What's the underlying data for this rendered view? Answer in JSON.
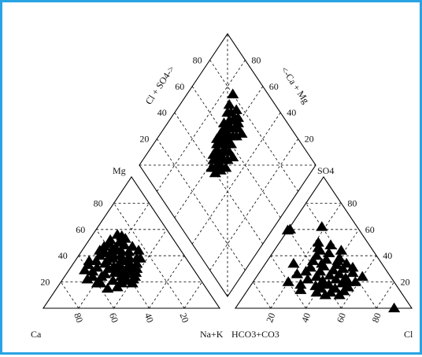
{
  "chart_data": [
    {
      "type": "scatter",
      "name": "cation-triangle",
      "labels": {
        "top": "Mg",
        "left": "Ca",
        "right": "Na+K"
      },
      "left_ticks": [
        "80",
        "60",
        "40",
        "20"
      ],
      "bottom_ticks": [
        "80",
        "60",
        "40",
        "20"
      ],
      "components": [
        "Ca",
        "Mg",
        "Na+K"
      ],
      "points": [
        [
          30,
          56,
          14
        ],
        [
          28,
          55,
          17
        ],
        [
          36,
          52,
          12
        ],
        [
          27,
          53,
          20
        ],
        [
          38,
          49,
          13
        ],
        [
          32,
          50,
          18
        ],
        [
          42,
          47,
          11
        ],
        [
          30,
          48,
          22
        ],
        [
          36,
          46,
          18
        ],
        [
          26,
          47,
          27
        ],
        [
          34,
          44,
          22
        ],
        [
          40,
          43,
          17
        ],
        [
          30,
          43,
          27
        ],
        [
          44,
          42,
          14
        ],
        [
          24,
          44,
          32
        ],
        [
          36,
          40,
          24
        ],
        [
          32,
          39,
          29
        ],
        [
          42,
          38,
          20
        ],
        [
          28,
          38,
          34
        ],
        [
          38,
          36,
          26
        ],
        [
          34,
          36,
          30
        ],
        [
          46,
          36,
          18
        ],
        [
          40,
          33,
          27
        ],
        [
          30,
          34,
          36
        ],
        [
          36,
          32,
          32
        ],
        [
          44,
          32,
          24
        ],
        [
          32,
          30,
          38
        ],
        [
          38,
          29,
          33
        ],
        [
          42,
          29,
          29
        ],
        [
          48,
          30,
          22
        ],
        [
          34,
          27,
          39
        ],
        [
          40,
          26,
          34
        ],
        [
          46,
          27,
          27
        ],
        [
          36,
          24,
          40
        ],
        [
          44,
          24,
          32
        ],
        [
          38,
          22,
          40
        ],
        [
          42,
          21,
          37
        ],
        [
          40,
          19,
          41
        ],
        [
          46,
          19,
          35
        ],
        [
          50,
          21,
          29
        ],
        [
          52,
          26,
          22
        ],
        [
          54,
          31,
          15
        ],
        [
          56,
          36,
          8
        ],
        [
          58,
          28,
          14
        ],
        [
          60,
          24,
          16
        ],
        [
          62,
          29,
          9
        ],
        [
          58,
          19,
          23
        ],
        [
          56,
          15,
          29
        ],
        [
          50,
          16,
          34
        ],
        [
          60,
          19,
          21
        ],
        [
          52,
          36,
          12
        ],
        [
          48,
          40,
          12
        ],
        [
          44,
          22,
          34
        ],
        [
          64,
          22,
          14
        ],
        [
          55,
          24,
          21
        ],
        [
          48,
          34,
          18
        ],
        [
          26,
          38,
          36
        ],
        [
          34,
          33,
          33
        ],
        [
          40,
          40,
          20
        ],
        [
          36,
          28,
          36
        ],
        [
          58,
          33,
          9
        ],
        [
          46,
          44,
          10
        ],
        [
          38,
          45,
          17
        ],
        [
          44,
          38,
          18
        ]
      ]
    },
    {
      "type": "scatter",
      "name": "anion-triangle",
      "labels": {
        "top": "SO4",
        "left": "HCO3+CO3",
        "right": "Cl"
      },
      "right_ticks": [
        "80",
        "60",
        "40",
        "20"
      ],
      "bottom_ticks": [
        "20",
        "40",
        "60",
        "80"
      ],
      "components": [
        "HCO3+CO3",
        "SO4",
        "Cl"
      ],
      "points": [
        [
          48,
          70,
          0
        ],
        [
          39,
          60,
          1
        ],
        [
          20,
          62,
          18
        ],
        [
          28,
          50,
          22
        ],
        [
          22,
          48,
          30
        ],
        [
          30,
          44,
          26
        ],
        [
          18,
          44,
          38
        ],
        [
          26,
          42,
          32
        ],
        [
          34,
          40,
          26
        ],
        [
          22,
          38,
          40
        ],
        [
          30,
          37,
          33
        ],
        [
          38,
          36,
          26
        ],
        [
          20,
          34,
          46
        ],
        [
          26,
          33,
          41
        ],
        [
          34,
          32,
          34
        ],
        [
          42,
          31,
          27
        ],
        [
          24,
          30,
          46
        ],
        [
          30,
          29,
          41
        ],
        [
          38,
          28,
          34
        ],
        [
          46,
          28,
          26
        ],
        [
          20,
          27,
          53
        ],
        [
          28,
          26,
          46
        ],
        [
          34,
          25,
          41
        ],
        [
          42,
          24,
          34
        ],
        [
          26,
          23,
          51
        ],
        [
          32,
          22,
          46
        ],
        [
          40,
          21,
          39
        ],
        [
          48,
          22,
          30
        ],
        [
          22,
          20,
          58
        ],
        [
          30,
          19,
          51
        ],
        [
          38,
          18,
          44
        ],
        [
          46,
          17,
          37
        ],
        [
          28,
          16,
          56
        ],
        [
          36,
          15,
          49
        ],
        [
          44,
          15,
          41
        ],
        [
          32,
          13,
          55
        ],
        [
          40,
          12,
          48
        ],
        [
          48,
          12,
          40
        ],
        [
          36,
          10,
          54
        ],
        [
          44,
          10,
          46
        ],
        [
          54,
          18,
          28
        ],
        [
          52,
          26,
          22
        ],
        [
          56,
          14,
          30
        ],
        [
          60,
          20,
          20
        ],
        [
          24,
          36,
          40
        ],
        [
          18,
          31,
          51
        ],
        [
          50,
          34,
          16
        ],
        [
          16,
          24,
          60
        ],
        [
          34,
          34,
          32
        ],
        [
          42,
          18,
          40
        ],
        [
          30,
          46,
          24
        ],
        [
          26,
          20,
          54
        ],
        [
          10,
          0,
          90
        ]
      ]
    },
    {
      "type": "scatter",
      "name": "diamond",
      "labels": {
        "upper_left": "Cl + SO4->",
        "upper_right": "<-Ca + Mg"
      },
      "left_ticks": [
        "20",
        "40",
        "60",
        "80"
      ],
      "right_ticks": [
        "80",
        "60",
        "40",
        "20"
      ],
      "components": [
        "Cl+SO4",
        "Ca+Mg"
      ],
      "points": [
        [
          60,
          72
        ],
        [
          62,
          74
        ],
        [
          64,
          70
        ],
        [
          58,
          70
        ],
        [
          66,
          76
        ],
        [
          60,
          68
        ],
        [
          62,
          66
        ],
        [
          64,
          72
        ],
        [
          56,
          66
        ],
        [
          68,
          72
        ],
        [
          58,
          64
        ],
        [
          60,
          62
        ],
        [
          62,
          62
        ],
        [
          64,
          66
        ],
        [
          66,
          68
        ],
        [
          56,
          60
        ],
        [
          58,
          58
        ],
        [
          60,
          60
        ],
        [
          62,
          58
        ],
        [
          64,
          60
        ],
        [
          66,
          62
        ],
        [
          68,
          64
        ],
        [
          54,
          56
        ],
        [
          56,
          54
        ],
        [
          58,
          54
        ],
        [
          60,
          56
        ],
        [
          62,
          54
        ],
        [
          64,
          56
        ],
        [
          66,
          58
        ],
        [
          52,
          52
        ],
        [
          54,
          50
        ],
        [
          56,
          50
        ],
        [
          58,
          50
        ],
        [
          60,
          50
        ],
        [
          62,
          50
        ],
        [
          64,
          52
        ],
        [
          54,
          46
        ],
        [
          56,
          46
        ],
        [
          58,
          46
        ],
        [
          60,
          44
        ],
        [
          52,
          44
        ],
        [
          56,
          42
        ],
        [
          58,
          40
        ],
        [
          54,
          40
        ],
        [
          70,
          70
        ],
        [
          50,
          48
        ],
        [
          66,
          54
        ],
        [
          72,
          74
        ],
        [
          74,
          80
        ],
        [
          54,
          70
        ],
        [
          50,
          56
        ],
        [
          62,
          46
        ]
      ]
    }
  ]
}
